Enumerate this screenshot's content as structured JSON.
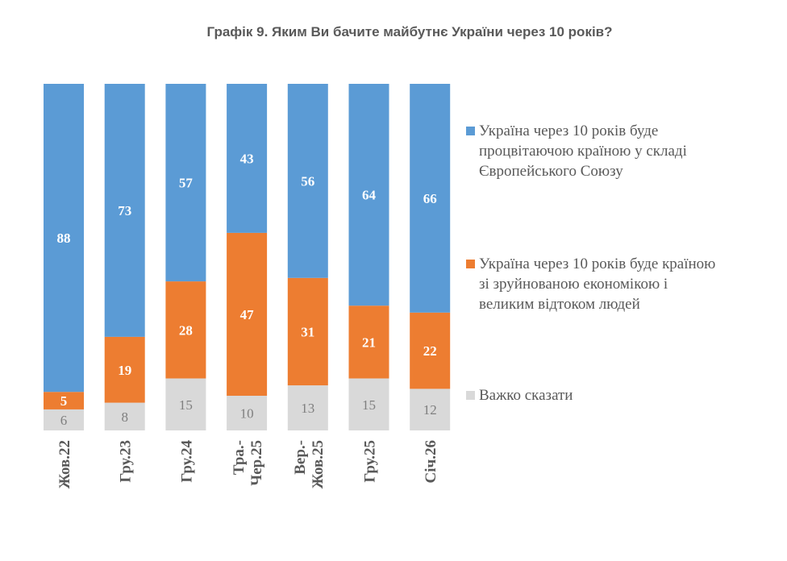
{
  "chart_data": {
    "type": "bar",
    "stacked": true,
    "title": "Графік 9. Яким Ви бачите майбутнє України через 10 років?",
    "categories": [
      "Жов.22",
      "Гру.23",
      "Гру.24",
      "Тра.-Чер.25",
      "Вер.-Жов.25",
      "Гру.25",
      "Січ.26"
    ],
    "category_lines": [
      [
        "Жов.22"
      ],
      [
        "Гру.23"
      ],
      [
        "Гру.24"
      ],
      [
        "Тра.-",
        "Чер.25"
      ],
      [
        "Вер.-",
        "Жов.25"
      ],
      [
        "Гру.25"
      ],
      [
        "Січ.26"
      ]
    ],
    "series": [
      {
        "name": "Україна через 10 років буде процвітаючою країною у складі Європейського Союзу",
        "legend_lines": [
          "Україна через 10 років буде",
          "процвітаючою країною у складі",
          "Європейського Союзу"
        ],
        "color": "#5B9BD5",
        "values": [
          88,
          73,
          57,
          43,
          56,
          64,
          66
        ]
      },
      {
        "name": "Україна через 10 років буде країною зі зруйнованою економікою і великим відтоком людей",
        "legend_lines": [
          "Україна через 10 років буде країною",
          "зі зруйнованою економікою і",
          "великим відтоком людей"
        ],
        "color": "#ED7D31",
        "values": [
          5,
          19,
          28,
          47,
          31,
          21,
          22
        ]
      },
      {
        "name": "Важко сказати",
        "legend_lines": [
          "Важко сказати"
        ],
        "color": "#D9D9D9",
        "values": [
          6,
          8,
          15,
          10,
          13,
          15,
          12
        ]
      }
    ],
    "xlabel": "",
    "ylabel": "",
    "grid": false,
    "legend_position": "right"
  }
}
